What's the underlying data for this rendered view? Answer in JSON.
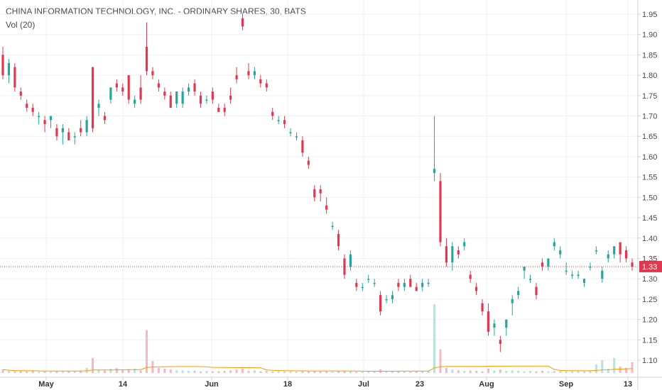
{
  "legend": {
    "title": "CHINA INFORMATION TECHNOLOGY, INC. - ORDINARY SHARES, 30, BATS",
    "volume": "Vol (20)"
  },
  "colors": {
    "up": "#26a69a",
    "down": "#e0394f",
    "vol_up": "#b8e2dc",
    "vol_down": "#f4b9c2",
    "vol_ma": "#ff9800",
    "price_line": "#e0394f",
    "grid": "#eef0f3",
    "axis": "#d0d3d8"
  },
  "chart_data": {
    "type": "candlestick",
    "ylim": [
      1.07,
      1.97
    ],
    "y_ticks": [
      1.1,
      1.15,
      1.2,
      1.25,
      1.3,
      1.35,
      1.4,
      1.45,
      1.5,
      1.55,
      1.6,
      1.65,
      1.7,
      1.75,
      1.8,
      1.85,
      1.9,
      1.95
    ],
    "x_ticks": [
      "May",
      "14",
      "Jun",
      "18",
      "Jul",
      "23",
      "Aug",
      "Sep",
      "13"
    ],
    "current_price": 1.33,
    "current_price_label": "1.33",
    "candles": [
      [
        1.85,
        1.87,
        1.79,
        1.8
      ],
      [
        1.8,
        1.84,
        1.78,
        1.83
      ],
      [
        1.82,
        1.83,
        1.76,
        1.77
      ],
      [
        1.76,
        1.77,
        1.74,
        1.75
      ],
      [
        1.73,
        1.74,
        1.71,
        1.72
      ],
      [
        1.72,
        1.73,
        1.7,
        1.71
      ],
      [
        1.7,
        1.71,
        1.68,
        1.7
      ],
      [
        1.69,
        1.7,
        1.66,
        1.68
      ],
      [
        1.69,
        1.7,
        1.67,
        1.7
      ],
      [
        1.67,
        1.68,
        1.64,
        1.65
      ],
      [
        1.66,
        1.68,
        1.63,
        1.67
      ],
      [
        1.66,
        1.67,
        1.64,
        1.64
      ],
      [
        1.65,
        1.66,
        1.63,
        1.65
      ],
      [
        1.67,
        1.69,
        1.65,
        1.66
      ],
      [
        1.66,
        1.7,
        1.65,
        1.69
      ],
      [
        1.82,
        1.82,
        1.66,
        1.67
      ],
      [
        1.72,
        1.74,
        1.7,
        1.73
      ],
      [
        1.7,
        1.71,
        1.68,
        1.69
      ],
      [
        1.74,
        1.77,
        1.73,
        1.77
      ],
      [
        1.78,
        1.79,
        1.76,
        1.77
      ],
      [
        1.77,
        1.78,
        1.75,
        1.76
      ],
      [
        1.8,
        1.8,
        1.73,
        1.74
      ],
      [
        1.73,
        1.75,
        1.72,
        1.74
      ],
      [
        1.77,
        1.8,
        1.73,
        1.74
      ],
      [
        1.87,
        1.93,
        1.8,
        1.81
      ],
      [
        1.81,
        1.82,
        1.79,
        1.8
      ],
      [
        1.78,
        1.79,
        1.76,
        1.77
      ],
      [
        1.76,
        1.77,
        1.74,
        1.75
      ],
      [
        1.75,
        1.76,
        1.72,
        1.72
      ],
      [
        1.73,
        1.76,
        1.72,
        1.76
      ],
      [
        1.73,
        1.77,
        1.72,
        1.76
      ],
      [
        1.76,
        1.78,
        1.75,
        1.77
      ],
      [
        1.78,
        1.79,
        1.75,
        1.76
      ],
      [
        1.75,
        1.76,
        1.72,
        1.73
      ],
      [
        1.74,
        1.75,
        1.73,
        1.74
      ],
      [
        1.76,
        1.77,
        1.73,
        1.74
      ],
      [
        1.72,
        1.73,
        1.71,
        1.71
      ],
      [
        1.72,
        1.73,
        1.7,
        1.71
      ],
      [
        1.75,
        1.77,
        1.73,
        1.74
      ],
      [
        1.8,
        1.82,
        1.78,
        1.79
      ],
      [
        1.94,
        1.95,
        1.91,
        1.92
      ],
      [
        1.81,
        1.83,
        1.79,
        1.8
      ],
      [
        1.8,
        1.82,
        1.79,
        1.81
      ],
      [
        1.79,
        1.8,
        1.77,
        1.78
      ],
      [
        1.78,
        1.79,
        1.76,
        1.77
      ],
      [
        1.71,
        1.72,
        1.69,
        1.7
      ],
      [
        1.69,
        1.7,
        1.68,
        1.69
      ],
      [
        1.69,
        1.7,
        1.67,
        1.68
      ],
      [
        1.66,
        1.67,
        1.65,
        1.66
      ],
      [
        1.65,
        1.66,
        1.64,
        1.65
      ],
      [
        1.64,
        1.65,
        1.6,
        1.61
      ],
      [
        1.59,
        1.6,
        1.57,
        1.58
      ],
      [
        1.52,
        1.53,
        1.49,
        1.5
      ],
      [
        1.52,
        1.53,
        1.49,
        1.51
      ],
      [
        1.48,
        1.5,
        1.46,
        1.47
      ],
      [
        1.43,
        1.44,
        1.42,
        1.43
      ],
      [
        1.41,
        1.42,
        1.37,
        1.38
      ],
      [
        1.35,
        1.36,
        1.3,
        1.31
      ],
      [
        1.33,
        1.37,
        1.32,
        1.36
      ],
      [
        1.29,
        1.3,
        1.27,
        1.28
      ],
      [
        1.28,
        1.29,
        1.27,
        1.28
      ],
      [
        1.3,
        1.31,
        1.29,
        1.3
      ],
      [
        1.29,
        1.3,
        1.28,
        1.29
      ],
      [
        1.26,
        1.27,
        1.21,
        1.22
      ],
      [
        1.25,
        1.26,
        1.24,
        1.25
      ],
      [
        1.25,
        1.27,
        1.24,
        1.26
      ],
      [
        1.29,
        1.3,
        1.27,
        1.28
      ],
      [
        1.28,
        1.3,
        1.27,
        1.29
      ],
      [
        1.3,
        1.31,
        1.28,
        1.28
      ],
      [
        1.28,
        1.29,
        1.27,
        1.27
      ],
      [
        1.28,
        1.3,
        1.27,
        1.29
      ],
      [
        1.29,
        1.3,
        1.28,
        1.29
      ],
      [
        1.56,
        1.7,
        1.54,
        1.57
      ],
      [
        1.54,
        1.56,
        1.38,
        1.39
      ],
      [
        1.38,
        1.4,
        1.33,
        1.34
      ],
      [
        1.34,
        1.39,
        1.32,
        1.38
      ],
      [
        1.37,
        1.38,
        1.35,
        1.36
      ],
      [
        1.38,
        1.4,
        1.37,
        1.39
      ],
      [
        1.31,
        1.32,
        1.29,
        1.3
      ],
      [
        1.28,
        1.29,
        1.26,
        1.27
      ],
      [
        1.24,
        1.25,
        1.21,
        1.22
      ],
      [
        1.22,
        1.24,
        1.16,
        1.17
      ],
      [
        1.18,
        1.2,
        1.16,
        1.19
      ],
      [
        1.15,
        1.16,
        1.12,
        1.14
      ],
      [
        1.18,
        1.2,
        1.16,
        1.2
      ],
      [
        1.24,
        1.26,
        1.21,
        1.25
      ],
      [
        1.26,
        1.28,
        1.25,
        1.27
      ],
      [
        1.32,
        1.33,
        1.3,
        1.33
      ],
      [
        1.3,
        1.31,
        1.29,
        1.3
      ],
      [
        1.28,
        1.29,
        1.25,
        1.26
      ],
      [
        1.34,
        1.35,
        1.32,
        1.33
      ],
      [
        1.33,
        1.35,
        1.32,
        1.35
      ],
      [
        1.38,
        1.4,
        1.37,
        1.39
      ],
      [
        1.36,
        1.38,
        1.35,
        1.37
      ],
      [
        1.32,
        1.34,
        1.31,
        1.32
      ],
      [
        1.31,
        1.32,
        1.3,
        1.31
      ],
      [
        1.31,
        1.32,
        1.3,
        1.31
      ],
      [
        1.29,
        1.3,
        1.28,
        1.3
      ],
      [
        1.33,
        1.34,
        1.32,
        1.33
      ],
      [
        1.37,
        1.38,
        1.36,
        1.37
      ],
      [
        1.3,
        1.33,
        1.29,
        1.32
      ],
      [
        1.35,
        1.37,
        1.34,
        1.36
      ],
      [
        1.36,
        1.38,
        1.35,
        1.38
      ],
      [
        1.39,
        1.39,
        1.34,
        1.36
      ],
      [
        1.37,
        1.38,
        1.34,
        1.35
      ],
      [
        1.34,
        1.35,
        1.32,
        1.33
      ]
    ],
    "volumes": [
      0.08,
      0.05,
      0.04,
      0.05,
      0.04,
      0.05,
      0.03,
      0.04,
      0.03,
      0.05,
      0.04,
      0.04,
      0.05,
      0.06,
      0.12,
      0.35,
      0.08,
      0.06,
      0.1,
      0.12,
      0.07,
      0.09,
      0.1,
      0.06,
      1.0,
      0.28,
      0.12,
      0.1,
      0.08,
      0.06,
      0.06,
      0.05,
      0.05,
      0.04,
      0.05,
      0.04,
      0.04,
      0.05,
      0.06,
      0.08,
      0.1,
      0.05,
      0.06,
      0.04,
      0.05,
      0.03,
      0.04,
      0.03,
      0.04,
      0.03,
      0.05,
      0.04,
      0.05,
      0.04,
      0.04,
      0.03,
      0.05,
      0.06,
      0.05,
      0.03,
      0.04,
      0.03,
      0.04,
      0.08,
      0.03,
      0.04,
      0.05,
      0.04,
      0.03,
      0.04,
      0.04,
      0.05,
      1.6,
      0.55,
      0.12,
      0.08,
      0.06,
      0.05,
      0.06,
      0.05,
      0.04,
      0.1,
      0.06,
      0.08,
      0.05,
      0.06,
      0.05,
      0.04,
      0.05,
      0.04,
      0.05,
      0.04,
      0.05,
      0.05,
      0.04,
      0.04,
      0.05,
      0.04,
      0.06,
      0.2,
      0.3,
      0.1,
      0.35,
      0.15,
      0.12,
      0.25
    ]
  }
}
